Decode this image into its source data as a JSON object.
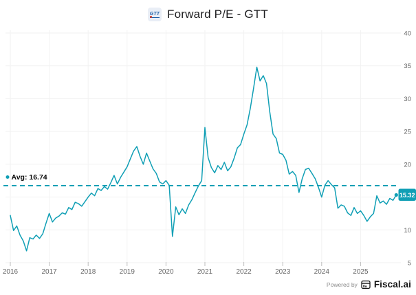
{
  "header": {
    "title": "Forward P/E - GTT",
    "logo_text": "GTT"
  },
  "chart_data": {
    "type": "line",
    "title": "Forward P/E - GTT",
    "grid": true,
    "legend": false,
    "line_color": "#109fb5",
    "x_axis": {
      "ticks": [
        2016,
        2017,
        2018,
        2019,
        2020,
        2021,
        2022,
        2023,
        2024,
        2025
      ],
      "start": "2016-01",
      "interval": "monthly"
    },
    "y_axis": {
      "ticks": [
        5,
        10,
        15,
        20,
        25,
        30,
        35,
        40
      ],
      "range": [
        5,
        40
      ],
      "side": "right"
    },
    "average_line": {
      "label": "Avg: 16.74",
      "value": 16.74,
      "style": "dashed"
    },
    "last_value": {
      "label": "15.32",
      "value": 15.32
    },
    "series": [
      {
        "name": "Forward P/E",
        "points_monthly_from": "2016-01",
        "values": [
          12.2,
          9.9,
          10.6,
          9.2,
          8.3,
          6.8,
          8.8,
          8.6,
          9.2,
          8.7,
          9.4,
          11.0,
          12.5,
          11.2,
          11.8,
          12.1,
          12.6,
          12.4,
          13.4,
          13.1,
          14.2,
          14.0,
          13.6,
          14.3,
          15.0,
          15.6,
          15.2,
          16.3,
          16.0,
          16.6,
          16.2,
          17.2,
          18.3,
          17.0,
          18.0,
          18.8,
          19.6,
          20.8,
          22.0,
          22.7,
          21.2,
          20.0,
          21.7,
          20.5,
          19.3,
          18.6,
          17.3,
          17.0,
          17.5,
          16.8,
          9.0,
          13.5,
          12.3,
          13.2,
          12.5,
          13.8,
          14.6,
          15.7,
          16.7,
          17.5,
          25.6,
          21.0,
          19.5,
          18.7,
          19.8,
          19.2,
          20.3,
          19.0,
          19.6,
          20.9,
          22.5,
          23.0,
          24.6,
          26.0,
          28.5,
          31.6,
          34.8,
          32.7,
          33.5,
          32.3,
          28.0,
          24.6,
          23.9,
          21.7,
          21.5,
          20.6,
          18.5,
          18.9,
          18.3,
          15.7,
          17.8,
          19.2,
          19.4,
          18.6,
          17.8,
          16.5,
          15.0,
          16.8,
          17.5,
          16.9,
          16.4,
          13.3,
          13.8,
          13.6,
          12.6,
          12.2,
          13.4,
          12.5,
          12.9,
          12.2,
          11.3,
          12.0,
          12.5,
          15.2,
          14.1,
          14.4,
          13.9,
          14.8,
          14.5,
          15.32
        ]
      }
    ]
  },
  "footer": {
    "powered_by": "Powered by",
    "brand": "Fiscal.ai"
  }
}
